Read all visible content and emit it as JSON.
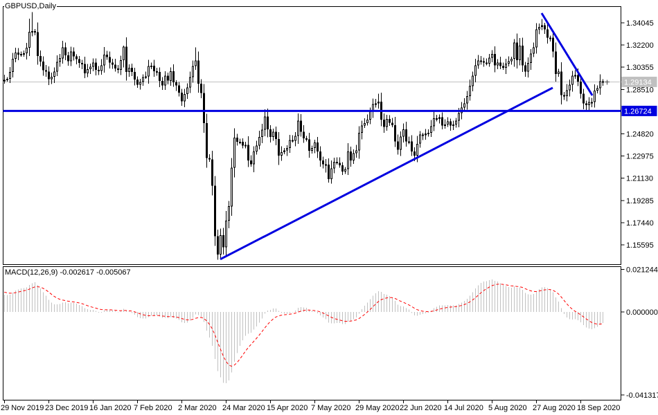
{
  "price_chart": {
    "symbol_label": "GBPUSD,Daily",
    "current_price": 1.29134
  },
  "macd_panel": {
    "label": "MACD(12,26,9) -0.002617 -0.005067",
    "main_value": -0.002617,
    "signal_value": -0.005067,
    "axis_labels": [
      {
        "text": "0.021244",
        "value": 0.021244
      },
      {
        "text": "0.000000",
        "value": 0.0
      },
      {
        "text": "-0.041317",
        "value": -0.041317
      }
    ]
  },
  "price_axis": {
    "labels": [
      {
        "text": "1.34045",
        "price": 1.34045
      },
      {
        "text": "1.32200",
        "price": 1.322
      },
      {
        "text": "1.30355",
        "price": 1.30355
      },
      {
        "text": "1.28510",
        "price": 1.2851
      },
      {
        "text": "1.24820",
        "price": 1.2482
      },
      {
        "text": "1.22975",
        "price": 1.22975
      },
      {
        "text": "1.21130",
        "price": 1.2113
      },
      {
        "text": "1.19285",
        "price": 1.19285
      },
      {
        "text": "1.17440",
        "price": 1.1744
      },
      {
        "text": "1.15595",
        "price": 1.15595
      }
    ],
    "current_price_label": {
      "text": "1.29134",
      "price": 1.29134,
      "bg": "#c0c0c0",
      "fg": "#ffffff"
    },
    "support_price_label": {
      "text": "1.26724",
      "price": 1.26724,
      "bg": "#0000e0",
      "fg": "#ffffff"
    }
  },
  "time_axis": {
    "labels": [
      "29 Nov 2019",
      "23 Dec 2019",
      "16 Jan 2020",
      "7 Feb 2020",
      "2 Mar 2020",
      "24 Mar 2020",
      "15 Apr 2020",
      "7 May 2020",
      "29 May 2020",
      "22 Jun 2020",
      "14 Jul 2020",
      "5 Aug 2020",
      "27 Aug 2020",
      "18 Sep 2020"
    ],
    "tick_indices": [
      0,
      16,
      32,
      48,
      64,
      80,
      96,
      112,
      128,
      144,
      160,
      176,
      192,
      208
    ]
  },
  "chart_data": {
    "type": "candlestick",
    "symbol": "GBPUSD",
    "timeframe": "Daily",
    "open_rule": "previous_close",
    "closes": [
      1.293,
      1.2938,
      1.2995,
      1.3105,
      1.3158,
      1.314,
      1.3147,
      1.3152,
      1.3197,
      1.333,
      1.3335,
      1.3328,
      1.3128,
      1.3082,
      1.3012,
      1.3,
      1.2935,
      1.2955,
      1.3,
      1.308,
      1.311,
      1.32,
      1.3135,
      1.3085,
      1.3165,
      1.3125,
      1.3104,
      1.307,
      1.3062,
      1.2985,
      1.302,
      1.304,
      1.3075,
      1.3013,
      1.3005,
      1.305,
      1.314,
      1.312,
      1.3073,
      1.3057,
      1.3026,
      1.3015,
      1.3093,
      1.3205,
      1.2997,
      1.303,
      1.2997,
      1.2932,
      1.289,
      1.2913,
      1.2952,
      1.296,
      1.3046,
      1.3048,
      1.3003,
      1.2997,
      1.2922,
      1.2883,
      1.2964,
      1.2923,
      1.3001,
      1.2909,
      1.2884,
      1.2823,
      1.2752,
      1.2812,
      1.2868,
      1.2954,
      1.3046,
      1.309,
      1.29,
      1.282,
      1.257,
      1.228,
      1.227,
      1.205,
      1.163,
      1.148,
      1.164,
      1.154,
      1.176,
      1.188,
      1.22,
      1.245,
      1.2415,
      1.2415,
      1.2385,
      1.239,
      1.226,
      1.223,
      1.2335,
      1.2385,
      1.2455,
      1.2515,
      1.2625,
      1.252,
      1.2455,
      1.25,
      1.244,
      1.23,
      1.233,
      1.2345,
      1.2365,
      1.243,
      1.2425,
      1.2465,
      1.259,
      1.25,
      1.2445,
      1.2435,
      1.234,
      1.2365,
      1.241,
      1.2335,
      1.226,
      1.223,
      1.2225,
      1.2105,
      1.2195,
      1.225,
      1.224,
      1.222,
      1.217,
      1.219,
      1.2335,
      1.226,
      1.232,
      1.2345,
      1.249,
      1.255,
      1.257,
      1.26,
      1.267,
      1.273,
      1.2735,
      1.275,
      1.26,
      1.254,
      1.2605,
      1.2575,
      1.2555,
      1.242,
      1.235,
      1.246,
      1.252,
      1.242,
      1.242,
      1.2335,
      1.23,
      1.24,
      1.2475,
      1.247,
      1.2485,
      1.249,
      1.2545,
      1.261,
      1.2605,
      1.262,
      1.255,
      1.256,
      1.2585,
      1.255,
      1.256,
      1.259,
      1.2655,
      1.27,
      1.2735,
      1.2795,
      1.288,
      1.2965,
      1.305,
      1.309,
      1.3085,
      1.3075,
      1.3065,
      1.3115,
      1.3145,
      1.305,
      1.3075,
      1.3045,
      1.303,
      1.3065,
      1.3085,
      1.3105,
      1.324,
      1.3095,
      1.3215,
      1.305,
      1.3,
      1.307,
      1.315,
      1.32,
      1.335,
      1.337,
      1.3385,
      1.335,
      1.328,
      1.328,
      1.3165,
      1.298,
      1.3,
      1.2805,
      1.2795,
      1.2845,
      1.289,
      1.2965,
      1.297,
      1.2915,
      1.2815,
      1.2735,
      1.272,
      1.2745,
      1.2745,
      1.284,
      1.286,
      1.292,
      1.2913
    ],
    "wick_overrides": {
      "9": {
        "h": 1.344
      },
      "10": {
        "h": 1.3495
      },
      "43": {
        "h": 1.3215
      },
      "69": {
        "h": 1.32
      },
      "76": {
        "l": 1.155
      },
      "77": {
        "l": 1.1435
      },
      "78": {
        "l": 1.1438
      },
      "79": {
        "l": 1.148
      },
      "116": {
        "l": 1.216
      },
      "117": {
        "l": 1.2078
      },
      "135": {
        "h": 1.2815
      },
      "184": {
        "h": 1.3268
      },
      "193": {
        "h": 1.34
      },
      "194": {
        "h": 1.3435
      },
      "195": {
        "h": 1.3405
      },
      "210": {
        "l": 1.2676
      },
      "211": {
        "l": 1.268
      }
    },
    "macd": {
      "fast": 12,
      "slow": 26,
      "signal": 9,
      "pre_closes": [
        1.225,
        1.229,
        1.233,
        1.244,
        1.258,
        1.262,
        1.261,
        1.287,
        1.294,
        1.296,
        1.284,
        1.287,
        1.285,
        1.288,
        1.29,
        1.286,
        1.282,
        1.285,
        1.288,
        1.283,
        1.288,
        1.292,
        1.285,
        1.279,
        1.285,
        1.288,
        1.291,
        1.293,
        1.285,
        1.292
      ]
    },
    "trendlines": [
      {
        "name": "support-line",
        "kind": "horizontal",
        "price": 1.26724,
        "color": "#0000e0",
        "width": 3
      },
      {
        "name": "rising-trendline",
        "kind": "segment",
        "points": [
          [
            78,
            1.144
          ],
          [
            198,
            1.2865
          ]
        ],
        "color": "#0000e0",
        "width": 3
      },
      {
        "name": "falling-trendline",
        "kind": "segment",
        "points": [
          [
            194,
            1.3485
          ],
          [
            212.3,
            1.2801
          ]
        ],
        "color": "#0000e0",
        "width": 3
      }
    ],
    "colors": {
      "bull": "#ffffff",
      "bear": "#000000",
      "outline": "#000000",
      "histogram": "#c0c0c0",
      "signal_line": "#ff0000",
      "trendline": "#0000e0",
      "current_price_line": "#c0c0c0",
      "axis_text": "#000000",
      "background": "#ffffff"
    }
  }
}
